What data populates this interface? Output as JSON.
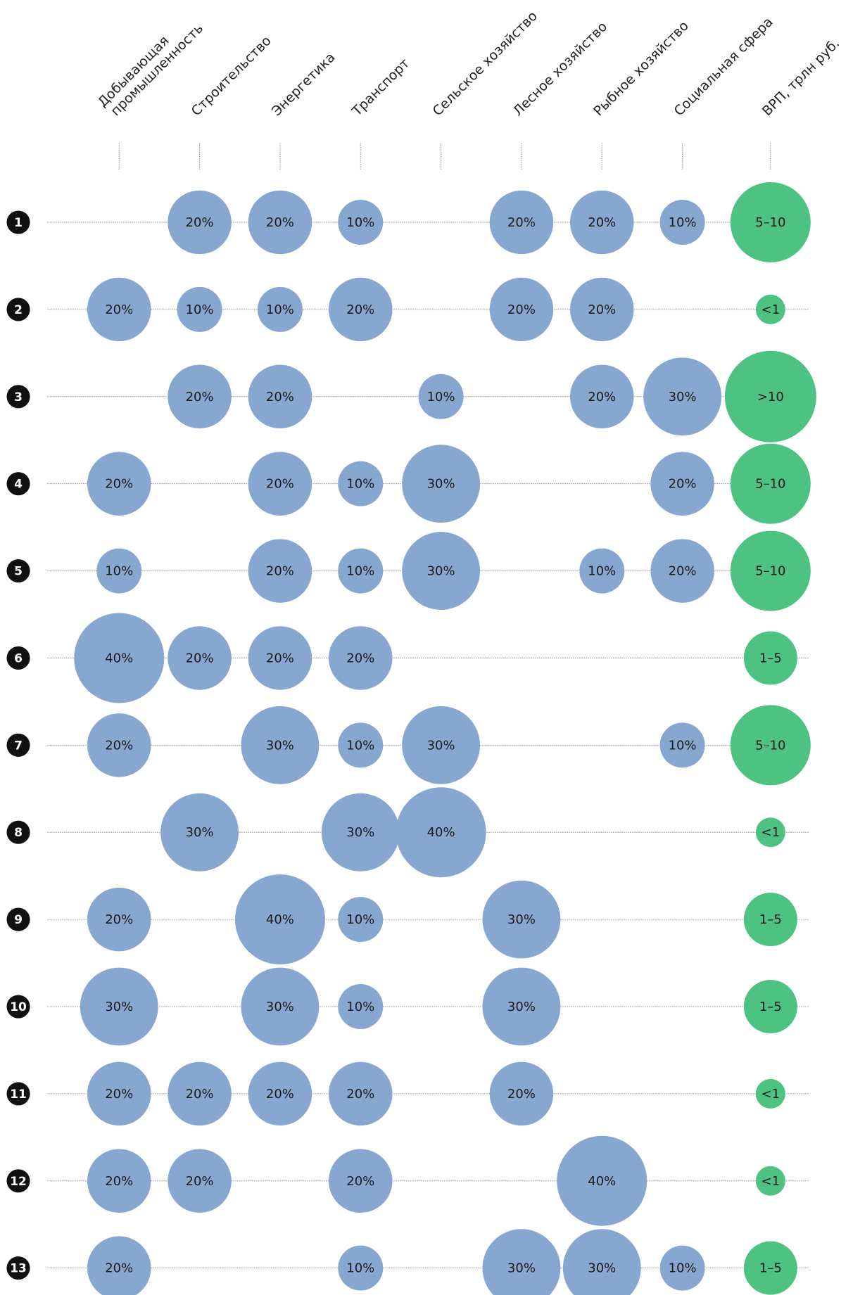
{
  "chart_data": {
    "type": "bubble_matrix",
    "columns": [
      [
        "Добывающая",
        "промышленность"
      ],
      [
        "Строительство"
      ],
      [
        "Энергетика"
      ],
      [
        "Транспорт"
      ],
      [
        "Сельское хозяйство"
      ],
      [
        "Лесное хозяйство"
      ],
      [
        "Рыбное хозяйство"
      ],
      [
        "Социальная сфера"
      ]
    ],
    "gdp_column": "ВРП, трлн руб.",
    "gdp_scale": [
      "<1",
      "1–5",
      "5–10",
      ">10"
    ],
    "share_color": "#87a7d0",
    "gdp_color": "#4dc283",
    "rows": [
      {
        "label": "1",
        "values": [
          null,
          20,
          20,
          10,
          null,
          20,
          20,
          10
        ],
        "value_labels": [
          null,
          "20%",
          "20%",
          "10%",
          null,
          "20%",
          "20%",
          "10%"
        ],
        "gdp": "5–10"
      },
      {
        "label": "2",
        "values": [
          20,
          10,
          10,
          20,
          null,
          20,
          20,
          null
        ],
        "value_labels": [
          "20%",
          "10%",
          "10%",
          "20%",
          null,
          "20%",
          "20%",
          null
        ],
        "gdp": "<1"
      },
      {
        "label": "3",
        "values": [
          null,
          20,
          20,
          null,
          10,
          null,
          20,
          30
        ],
        "value_labels": [
          null,
          "20%",
          "20%",
          null,
          "10%",
          null,
          "20%",
          "30%"
        ],
        "gdp": ">10"
      },
      {
        "label": "4",
        "values": [
          20,
          null,
          20,
          10,
          30,
          null,
          null,
          20
        ],
        "value_labels": [
          "20%",
          null,
          "20%",
          "10%",
          "30%",
          null,
          null,
          "20%"
        ],
        "gdp": "5–10"
      },
      {
        "label": "5",
        "values": [
          10,
          null,
          20,
          10,
          30,
          null,
          10,
          20
        ],
        "value_labels": [
          "10%",
          null,
          "20%",
          "10%",
          "30%",
          null,
          "10%",
          "20%"
        ],
        "gdp": "5–10"
      },
      {
        "label": "6",
        "values": [
          40,
          20,
          20,
          20,
          null,
          null,
          null,
          null
        ],
        "value_labels": [
          "40%",
          "20%",
          "20%",
          "20%",
          null,
          null,
          null,
          null
        ],
        "gdp": "1–5"
      },
      {
        "label": "7",
        "values": [
          20,
          null,
          30,
          10,
          30,
          null,
          null,
          10
        ],
        "value_labels": [
          "20%",
          null,
          "30%",
          "10%",
          "30%",
          null,
          null,
          "10%"
        ],
        "gdp": "5–10"
      },
      {
        "label": "8",
        "values": [
          null,
          30,
          null,
          30,
          40,
          null,
          null,
          null
        ],
        "value_labels": [
          null,
          "30%",
          null,
          "30%",
          "40%",
          null,
          null,
          null
        ],
        "gdp": "<1"
      },
      {
        "label": "9",
        "values": [
          20,
          null,
          40,
          10,
          null,
          30,
          null,
          null
        ],
        "value_labels": [
          "20%",
          null,
          "40%",
          "10%",
          null,
          "30%",
          null,
          null
        ],
        "gdp": "1–5"
      },
      {
        "label": "10",
        "values": [
          30,
          null,
          30,
          10,
          null,
          30,
          null,
          null
        ],
        "value_labels": [
          "30%",
          null,
          "30%",
          "10%",
          null,
          "30%",
          null,
          null
        ],
        "gdp": "1–5"
      },
      {
        "label": "11",
        "values": [
          20,
          20,
          20,
          20,
          null,
          20,
          null,
          null
        ],
        "value_labels": [
          "20%",
          "20%",
          "20%",
          "20%",
          null,
          "20%",
          null,
          null
        ],
        "gdp": "<1"
      },
      {
        "label": "12",
        "values": [
          20,
          20,
          null,
          20,
          null,
          null,
          40,
          null
        ],
        "value_labels": [
          "20%",
          "20%",
          null,
          "20%",
          null,
          null,
          "40%",
          null
        ],
        "gdp": "<1"
      },
      {
        "label": "13",
        "values": [
          20,
          null,
          null,
          10,
          null,
          30,
          30,
          10
        ],
        "value_labels": [
          "20%",
          null,
          null,
          "10%",
          null,
          "30%",
          "30%",
          "10%"
        ],
        "gdp": "1–5"
      }
    ]
  }
}
